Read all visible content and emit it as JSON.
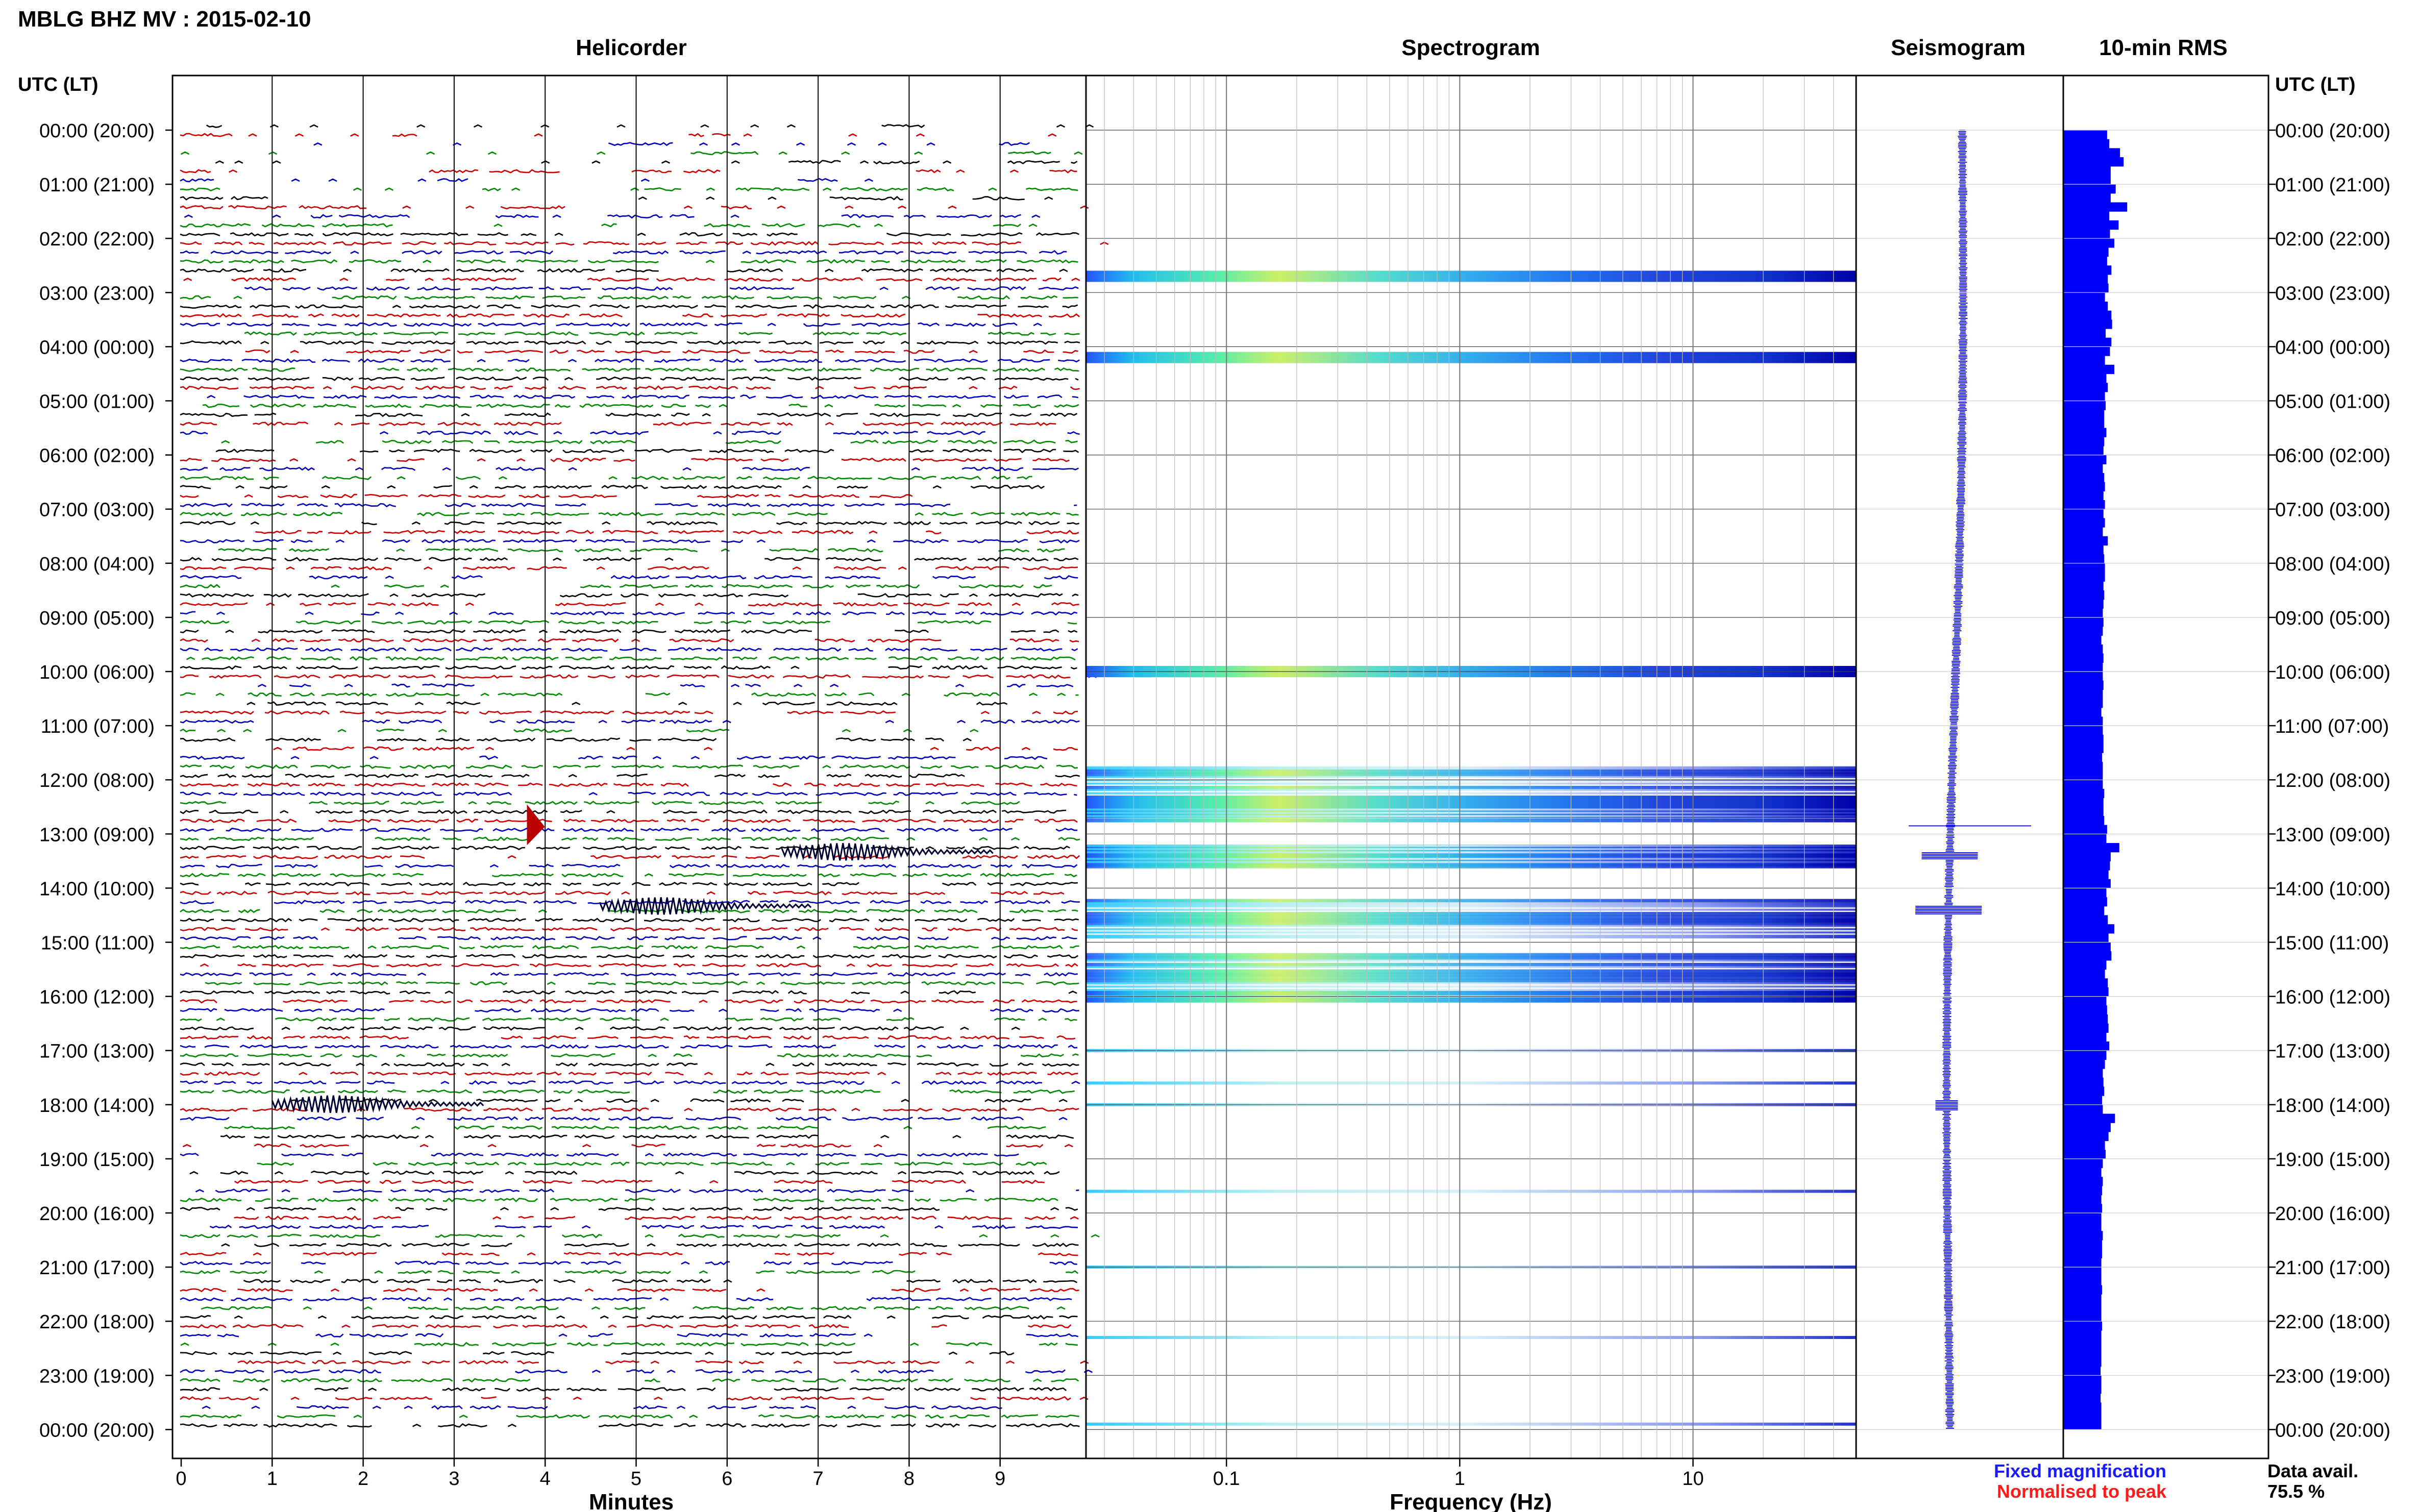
{
  "header": {
    "title": "MBLG BHZ MV : 2015-02-10"
  },
  "panels": {
    "helicorder": "Helicorder",
    "spectrogram": "Spectrogram",
    "seismogram": "Seismogram",
    "rms": "10-min RMS"
  },
  "axes": {
    "time_label_left": "UTC (LT)",
    "time_label_right": "UTC (LT)",
    "minutes_label": "Minutes",
    "frequency_label": "Frequency (Hz)",
    "minute_ticks": [
      "0",
      "1",
      "2",
      "3",
      "4",
      "5",
      "6",
      "7",
      "8",
      "9"
    ],
    "frequency_ticks": [
      "0.1",
      "1",
      "10"
    ],
    "hour_labels": [
      "00:00 (20:00)",
      "01:00 (21:00)",
      "02:00 (22:00)",
      "03:00 (23:00)",
      "04:00 (00:00)",
      "05:00 (01:00)",
      "06:00 (02:00)",
      "07:00 (03:00)",
      "08:00 (04:00)",
      "09:00 (05:00)",
      "10:00 (06:00)",
      "11:00 (07:00)",
      "12:00 (08:00)",
      "13:00 (09:00)",
      "14:00 (10:00)",
      "15:00 (11:00)",
      "16:00 (12:00)",
      "17:00 (13:00)",
      "18:00 (14:00)",
      "19:00 (15:00)",
      "20:00 (16:00)",
      "21:00 (17:00)",
      "22:00 (18:00)",
      "23:00 (19:00)",
      "00:00 (20:00)"
    ]
  },
  "legend": {
    "fixed": "Fixed magnification",
    "normalised": "Normalised to peak",
    "fixed_color": "#1a1aff",
    "normalised_color": "#ff1a1a"
  },
  "data_availability": {
    "label": "Data avail.",
    "value": "75.5 %"
  },
  "colors": {
    "trace_cycle": [
      "#000000",
      "#cc0000",
      "#0000bb",
      "#008800"
    ],
    "seismogram": "#1a1aff",
    "rms": "#0000ff"
  },
  "chart_data": {
    "type": "heatmap",
    "station": "MBLG",
    "channel": "BHZ",
    "network": "MV",
    "date": "2015-02-10",
    "helicorder": {
      "x_unit": "minutes",
      "xlim": [
        0,
        10
      ],
      "rows_per_hour": 6,
      "hours": 24
    },
    "spectrogram": {
      "x_unit": "Hz",
      "xlim": [
        0.025,
        50
      ],
      "scale": "log",
      "active_hours": [
        2.7,
        4.2,
        10.0,
        11.8,
        12.4,
        12.6,
        13.3,
        13.5,
        14.3,
        14.6,
        14.9,
        15.6,
        16.0,
        17.0,
        17.6,
        18.0,
        19.6,
        21.0,
        22.3,
        23.9
      ],
      "strong_hours": [
        2.7,
        4.2,
        10.0,
        12.5,
        13.4,
        15.9
      ]
    },
    "events": [
      {
        "hour": 12.83,
        "minute": 3.8,
        "color": "normalised"
      },
      {
        "hour": 13.33,
        "minute": 6.6
      },
      {
        "hour": 14.33,
        "minute": 4.6
      },
      {
        "hour": 17.99,
        "minute": 1.0
      }
    ],
    "rms": {
      "interval_min": 10,
      "levels": [
        0.61,
        0.64,
        0.79,
        0.84,
        0.66,
        0.66,
        0.73,
        0.66,
        0.89,
        0.64,
        0.77,
        0.65,
        0.71,
        0.63,
        0.61,
        0.67,
        0.62,
        0.63,
        0.58,
        0.62,
        0.67,
        0.68,
        0.59,
        0.67,
        0.65,
        0.58,
        0.71,
        0.6,
        0.62,
        0.58,
        0.59,
        0.57,
        0.57,
        0.6,
        0.57,
        0.56,
        0.6,
        0.55,
        0.57,
        0.58,
        0.56,
        0.58,
        0.56,
        0.58,
        0.55,
        0.62,
        0.56,
        0.57,
        0.58,
        0.58,
        0.56,
        0.57,
        0.56,
        0.55,
        0.56,
        0.55,
        0.53,
        0.55,
        0.56,
        0.55,
        0.55,
        0.56,
        0.55,
        0.55,
        0.53,
        0.55,
        0.55,
        0.56,
        0.56,
        0.54,
        0.55,
        0.55,
        0.55,
        0.57,
        0.56,
        0.56,
        0.57,
        0.61,
        0.6,
        0.78,
        0.66,
        0.65,
        0.63,
        0.66,
        0.6,
        0.61,
        0.57,
        0.62,
        0.71,
        0.63,
        0.66,
        0.67,
        0.6,
        0.58,
        0.62,
        0.63,
        0.6,
        0.61,
        0.62,
        0.63,
        0.6,
        0.64,
        0.6,
        0.58,
        0.55,
        0.56,
        0.57,
        0.54,
        0.55,
        0.72,
        0.66,
        0.63,
        0.58,
        0.59,
        0.55,
        0.53,
        0.55,
        0.54,
        0.53,
        0.54,
        0.53,
        0.53,
        0.55,
        0.54,
        0.54,
        0.53,
        0.53,
        0.53,
        0.54,
        0.53,
        0.53,
        0.53,
        0.54,
        0.53,
        0.53,
        0.53,
        0.53,
        0.52,
        0.53,
        0.53,
        0.52,
        0.53,
        0.53,
        0.53
      ]
    }
  }
}
